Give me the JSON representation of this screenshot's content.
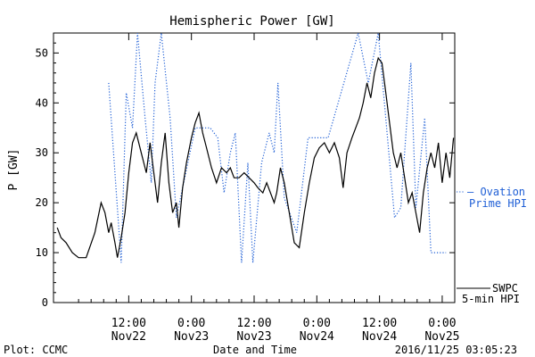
{
  "chart_data": {
    "type": "line",
    "title": "Hemispheric Power [GW]",
    "ylabel": "P [GW]",
    "xlabel": "Date and Time",
    "ylim": [
      0,
      54
    ],
    "xlim": [
      -6,
      26
    ],
    "yticks": [
      0,
      10,
      20,
      30,
      40,
      50
    ],
    "xticks": [
      {
        "x": 0,
        "top": "12:00",
        "bottom": "Nov22"
      },
      {
        "x": 5,
        "top": "0:00",
        "bottom": "Nov23"
      },
      {
        "x": 10,
        "top": "12:00",
        "bottom": "Nov23"
      },
      {
        "x": 15,
        "top": "0:00",
        "bottom": "Nov24"
      },
      {
        "x": 20,
        "top": "12:00",
        "bottom": "Nov24"
      },
      {
        "x": 25,
        "top": "0:00",
        "bottom": "Nov25"
      }
    ],
    "series": [
      {
        "name": "Ovation Prime HPI",
        "style": "dotted",
        "color": "#1f5fd6",
        "label_lines": [
          "– Ovation",
          "Prime HPI"
        ],
        "x": [
          -1.6,
          -1.6,
          -0.6,
          -0.6,
          -0.2,
          -0.2,
          0.3,
          0.3,
          0.7,
          0.7,
          1.3,
          1.3,
          1.8,
          1.8,
          2.1,
          2.1,
          2.6,
          2.6,
          3.3,
          3.3,
          3.8,
          3.8,
          5.3,
          6.5,
          7.1,
          7.1,
          7.6,
          7.6,
          8.1,
          8.1,
          8.5,
          8.5,
          9.0,
          9.0,
          9.5,
          9.5,
          9.9,
          9.9,
          10.6,
          10.6,
          11.2,
          11.2,
          11.6,
          11.6,
          11.9,
          11.9,
          12.4,
          12.4,
          13.4,
          13.4,
          14.3,
          14.3,
          15.9,
          18.3,
          18.3,
          19.1,
          19.1,
          19.9,
          19.9,
          21.2,
          21.2,
          21.7,
          21.7,
          22.5,
          22.5,
          22.9,
          22.9,
          23.6,
          23.6,
          24.1,
          24.1,
          25.3
        ],
        "y": [
          44,
          44,
          8,
          8,
          42,
          42,
          35,
          35,
          54,
          54,
          37,
          37,
          24,
          24,
          44,
          44,
          54,
          54,
          37,
          37,
          17,
          17,
          35,
          35,
          33,
          33,
          22,
          22,
          30,
          30,
          34,
          34,
          8,
          8,
          28,
          28,
          8,
          8,
          28,
          28,
          34,
          34,
          30,
          30,
          44,
          44,
          21,
          21,
          14,
          14,
          33,
          33,
          33,
          54,
          54,
          44,
          44,
          54,
          54,
          17,
          17,
          19,
          19,
          48,
          48,
          19,
          19,
          37,
          37,
          10,
          10,
          10
        ]
      },
      {
        "name": "SWPC 5-min HPI",
        "style": "solid",
        "color": "#000000",
        "label_lines": [
          "SWPC",
          "5-min HPI"
        ],
        "x": [
          -5.7,
          -5.4,
          -5.0,
          -4.5,
          -4.0,
          -3.4,
          -2.7,
          -2.2,
          -1.9,
          -1.6,
          -1.4,
          -1.1,
          -0.9,
          -0.6,
          -0.3,
          0.0,
          0.3,
          0.6,
          1.0,
          1.4,
          1.7,
          2.0,
          2.3,
          2.6,
          2.9,
          3.2,
          3.5,
          3.8,
          4.0,
          4.3,
          4.6,
          5.0,
          5.3,
          5.6,
          5.9,
          6.2,
          6.6,
          7.0,
          7.4,
          7.8,
          8.1,
          8.4,
          8.8,
          9.2,
          9.6,
          10.0,
          10.3,
          10.7,
          11.0,
          11.3,
          11.6,
          11.8,
          12.1,
          12.4,
          12.8,
          13.2,
          13.6,
          14.0,
          14.4,
          14.8,
          15.2,
          15.6,
          16.0,
          16.4,
          16.8,
          17.1,
          17.4,
          17.8,
          18.1,
          18.4,
          18.7,
          19.0,
          19.3,
          19.6,
          19.9,
          20.2,
          20.5,
          20.8,
          21.1,
          21.4,
          21.7,
          22.0,
          22.3,
          22.6,
          22.9,
          23.2,
          23.5,
          23.8,
          24.1,
          24.4,
          24.7,
          25.0,
          25.3,
          25.6,
          25.9
        ],
        "y": [
          15,
          13,
          12,
          10,
          9,
          9,
          14,
          20,
          18,
          14,
          16,
          12,
          9,
          13,
          18,
          26,
          32,
          34,
          30,
          26,
          32,
          26,
          20,
          28,
          34,
          24,
          18,
          20,
          15,
          23,
          28,
          33,
          36,
          38,
          34,
          31,
          27,
          24,
          27,
          26,
          27,
          25,
          25,
          26,
          25,
          24,
          23,
          22,
          24,
          22,
          20,
          22,
          27,
          24,
          18,
          12,
          11,
          18,
          24,
          29,
          31,
          32,
          30,
          32,
          29,
          23,
          30,
          33,
          35,
          37,
          40,
          44,
          41,
          46,
          49,
          48,
          42,
          36,
          30,
          27,
          30,
          25,
          20,
          22,
          18,
          14,
          22,
          27,
          30,
          27,
          32,
          24,
          30,
          25,
          33
        ]
      }
    ]
  },
  "footer": {
    "left": "Plot: CCMC",
    "center": "Date and Time",
    "right": "2016/11/25 03:05:23"
  }
}
